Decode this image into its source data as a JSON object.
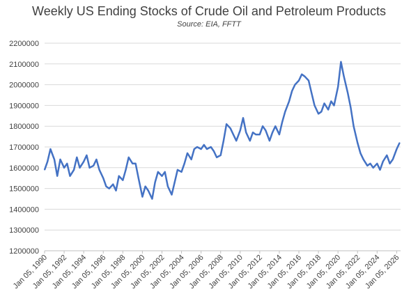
{
  "chart_data": {
    "type": "line",
    "title": "Weekly US Ending Stocks of Crude Oil and Petroleum Products",
    "subtitle": "Source: EIA, FFTT",
    "xlabel": "",
    "ylabel": "",
    "ylim": [
      1200000,
      2200000
    ],
    "xlim": [
      1990.0,
      2026.4
    ],
    "grid": true,
    "legend": "none",
    "line_color": "#4472C4",
    "y_ticks": [
      "1200000",
      "1300000",
      "1400000",
      "1500000",
      "1600000",
      "1700000",
      "1800000",
      "1900000",
      "2000000",
      "2100000",
      "2200000"
    ],
    "x_ticks": [
      "Jan 05, 1990",
      "Jan 05, 1992",
      "Jan 05, 1994",
      "Jan 05, 1996",
      "Jan 05, 1998",
      "Jan 05, 2000",
      "Jan 05, 2002",
      "Jan 05, 2004",
      "Jan 05, 2006",
      "Jan 05, 2008",
      "Jan 05, 2010",
      "Jan 05, 2012",
      "Jan 05, 2014",
      "Jan 05, 2016",
      "Jan 05, 2018",
      "Jan 05, 2020",
      "Jan 05, 2022",
      "Jan 05, 2024",
      "Jan 05, 2026"
    ],
    "x_tick_years": [
      1990,
      1992,
      1994,
      1996,
      1998,
      2000,
      2002,
      2004,
      2006,
      2008,
      2010,
      2012,
      2014,
      2016,
      2018,
      2020,
      2022,
      2024,
      2026
    ],
    "series": [
      {
        "x": [
          1990.0,
          1990.3,
          1990.6,
          1991.0,
          1991.3,
          1991.6,
          1992.0,
          1992.3,
          1992.6,
          1993.0,
          1993.3,
          1993.6,
          1994.0,
          1994.3,
          1994.6,
          1995.0,
          1995.3,
          1995.6,
          1996.0,
          1996.3,
          1996.6,
          1997.0,
          1997.3,
          1997.6,
          1998.0,
          1998.3,
          1998.6,
          1999.0,
          1999.3,
          1999.6,
          2000.0,
          2000.3,
          2000.6,
          2001.0,
          2001.3,
          2001.6,
          2002.0,
          2002.3,
          2002.6,
          2003.0,
          2003.3,
          2003.6,
          2004.0,
          2004.3,
          2004.6,
          2005.0,
          2005.3,
          2005.6,
          2006.0,
          2006.3,
          2006.6,
          2007.0,
          2007.3,
          2007.6,
          2008.0,
          2008.3,
          2008.6,
          2009.0,
          2009.3,
          2009.6,
          2010.0,
          2010.3,
          2010.6,
          2011.0,
          2011.3,
          2011.6,
          2012.0,
          2012.3,
          2012.6,
          2013.0,
          2013.3,
          2013.6,
          2014.0,
          2014.3,
          2014.6,
          2015.0,
          2015.3,
          2015.6,
          2016.0,
          2016.3,
          2016.6,
          2017.0,
          2017.3,
          2017.6,
          2018.0,
          2018.3,
          2018.6,
          2019.0,
          2019.3,
          2019.6,
          2020.0,
          2020.3,
          2020.6,
          2021.0,
          2021.3,
          2021.6,
          2022.0,
          2022.3,
          2022.6,
          2023.0,
          2023.3,
          2023.6,
          2024.0,
          2024.3,
          2024.6,
          2025.0,
          2025.3,
          2025.6,
          2026.0,
          2026.3
        ],
        "values": [
          1590000,
          1630000,
          1690000,
          1640000,
          1560000,
          1640000,
          1600000,
          1620000,
          1560000,
          1590000,
          1650000,
          1600000,
          1630000,
          1660000,
          1600000,
          1610000,
          1640000,
          1590000,
          1550000,
          1510000,
          1500000,
          1520000,
          1490000,
          1560000,
          1540000,
          1590000,
          1650000,
          1620000,
          1620000,
          1550000,
          1460000,
          1510000,
          1490000,
          1450000,
          1530000,
          1580000,
          1560000,
          1580000,
          1510000,
          1470000,
          1530000,
          1590000,
          1580000,
          1620000,
          1670000,
          1640000,
          1690000,
          1700000,
          1690000,
          1710000,
          1690000,
          1700000,
          1680000,
          1650000,
          1660000,
          1730000,
          1810000,
          1790000,
          1760000,
          1730000,
          1780000,
          1840000,
          1770000,
          1730000,
          1770000,
          1760000,
          1760000,
          1800000,
          1780000,
          1730000,
          1770000,
          1800000,
          1760000,
          1820000,
          1870000,
          1920000,
          1970000,
          2000000,
          2020000,
          2050000,
          2040000,
          2020000,
          1960000,
          1900000,
          1860000,
          1870000,
          1910000,
          1880000,
          1920000,
          1900000,
          1990000,
          2110000,
          2040000,
          1960000,
          1890000,
          1800000,
          1720000,
          1670000,
          1640000,
          1610000,
          1620000,
          1600000,
          1620000,
          1590000,
          1630000,
          1660000,
          1620000,
          1640000,
          1690000,
          1720000
        ]
      }
    ]
  }
}
